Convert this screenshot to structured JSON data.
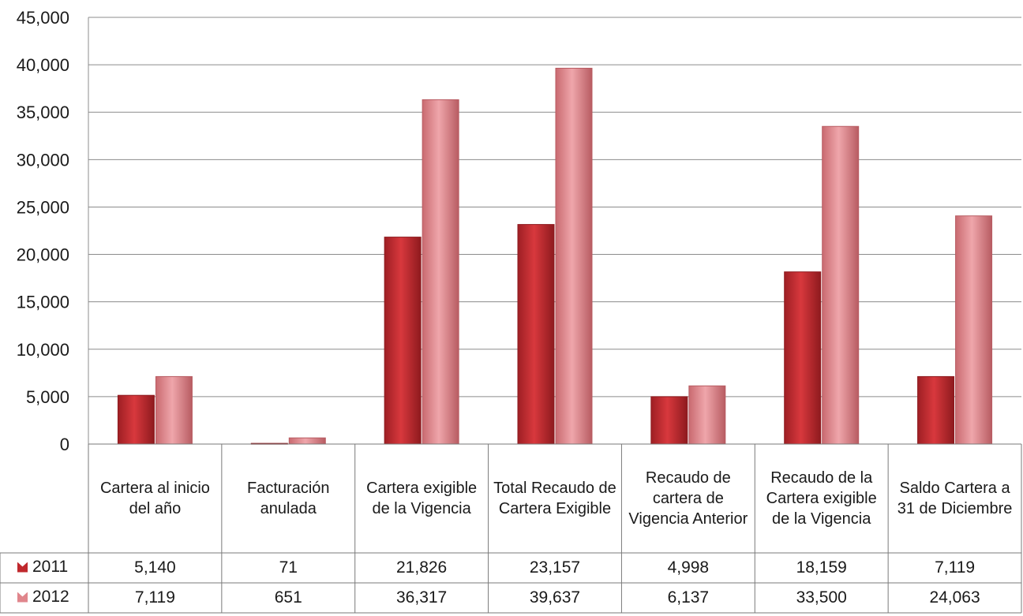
{
  "colors": {
    "s2011": "#c0282d",
    "s2011_dark": "#8e1a1e",
    "s2012": "#e0868c",
    "s2012_dark": "#b85c62"
  },
  "chart_data": {
    "type": "bar",
    "title": "",
    "xlabel": "",
    "ylabel": "",
    "ylim": [
      0,
      45000
    ],
    "yticks": [
      "0",
      "5,000",
      "10,000",
      "15,000",
      "20,000",
      "25,000",
      "30,000",
      "35,000",
      "40,000",
      "45,000"
    ],
    "grid": true,
    "categories": [
      "Cartera al inicio del año",
      "Facturación anulada",
      "Cartera exigible de la Vigencia",
      "Total Recaudo de Cartera Exigible",
      "Recaudo de cartera de Vigencia Anterior",
      "Recaudo de la Cartera exigible de la Vigencia",
      "Saldo Cartera a 31 de Diciembre"
    ],
    "series": [
      {
        "name": "2011",
        "values": [
          5140,
          71,
          21826,
          23157,
          4998,
          18159,
          7119
        ],
        "labels": [
          "5,140",
          "71",
          "21,826",
          "23,157",
          "4,998",
          "18,159",
          "7,119"
        ]
      },
      {
        "name": "2012",
        "values": [
          7119,
          651,
          36317,
          39637,
          6137,
          33500,
          24063
        ],
        "labels": [
          "7,119",
          "651",
          "36,317",
          "39,637",
          "6,137",
          "33,500",
          "24,063"
        ]
      }
    ],
    "legend": "data-table-left"
  }
}
